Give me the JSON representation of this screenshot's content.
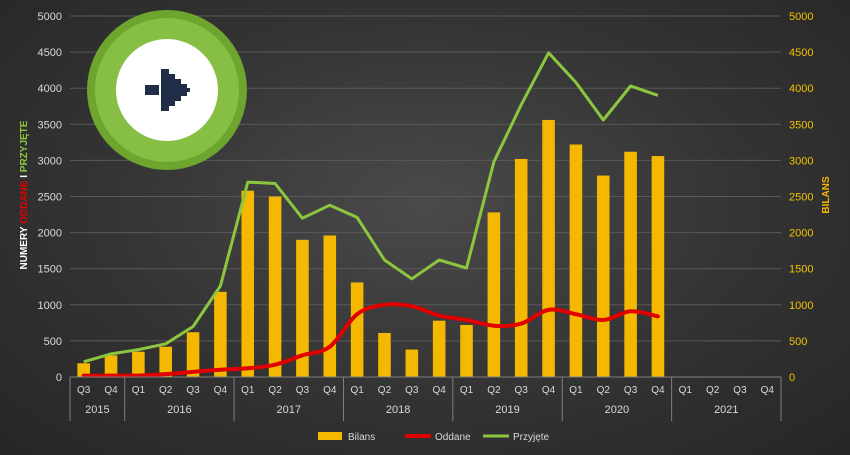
{
  "chart_data": {
    "type": "bar",
    "ylabel_left": {
      "parts": [
        {
          "text": "NUMERY ",
          "color": "#ffffff"
        },
        {
          "text": "ODDANE",
          "color": "#e00000"
        },
        {
          "text": " I ",
          "color": "#ffffff"
        },
        {
          "text": "PRZYJĘTE",
          "color": "#8cc63f"
        }
      ]
    },
    "ylabel_right": "BILANS",
    "ylim_left": [
      0,
      5000
    ],
    "ylim_right": [
      0,
      5000
    ],
    "yticks": [
      0,
      500,
      1000,
      1500,
      2000,
      2500,
      3000,
      3500,
      4000,
      4500,
      5000
    ],
    "categories": [
      "Q3",
      "Q4",
      "Q1",
      "Q2",
      "Q3",
      "Q4",
      "Q1",
      "Q2",
      "Q3",
      "Q4",
      "Q1",
      "Q2",
      "Q3",
      "Q4",
      "Q1",
      "Q2",
      "Q3",
      "Q4",
      "Q1",
      "Q2",
      "Q3",
      "Q4",
      "Q1",
      "Q2",
      "Q3",
      "Q4"
    ],
    "years": [
      {
        "label": "2015",
        "count": 2
      },
      {
        "label": "2016",
        "count": 4
      },
      {
        "label": "2017",
        "count": 4
      },
      {
        "label": "2018",
        "count": 4
      },
      {
        "label": "2019",
        "count": 4
      },
      {
        "label": "2020",
        "count": 4
      },
      {
        "label": "2021",
        "count": 4
      }
    ],
    "series": [
      {
        "name": "Bilans",
        "kind": "bar",
        "color": "#f5b800",
        "values": [
          190,
          300,
          350,
          420,
          620,
          1180,
          2580,
          2500,
          1900,
          1960,
          1310,
          610,
          380,
          780,
          720,
          2280,
          3020,
          3560,
          3220,
          2790,
          3120,
          3060,
          null,
          null,
          null,
          null
        ]
      },
      {
        "name": "Oddane",
        "kind": "line",
        "color": "#e00000",
        "values": [
          20,
          20,
          20,
          40,
          70,
          100,
          120,
          170,
          300,
          420,
          870,
          1000,
          980,
          850,
          790,
          710,
          740,
          930,
          870,
          790,
          910,
          840,
          null,
          null,
          null,
          null
        ]
      },
      {
        "name": "Przyjęte",
        "kind": "line",
        "color": "#8cc63f",
        "values": [
          210,
          320,
          380,
          460,
          700,
          1260,
          2700,
          2680,
          2200,
          2380,
          2210,
          1620,
          1360,
          1620,
          1510,
          2980,
          3770,
          4490,
          4080,
          3560,
          4030,
          3900,
          null,
          null,
          null,
          null
        ]
      }
    ],
    "legend": [
      "Bilans",
      "Oddane",
      "Przyjęte"
    ],
    "legend_position": "bottom"
  },
  "badge": {
    "icon": "arrow-right-icon",
    "ring_color": "#7bb33a",
    "arrow_color": "#1f2d46"
  }
}
